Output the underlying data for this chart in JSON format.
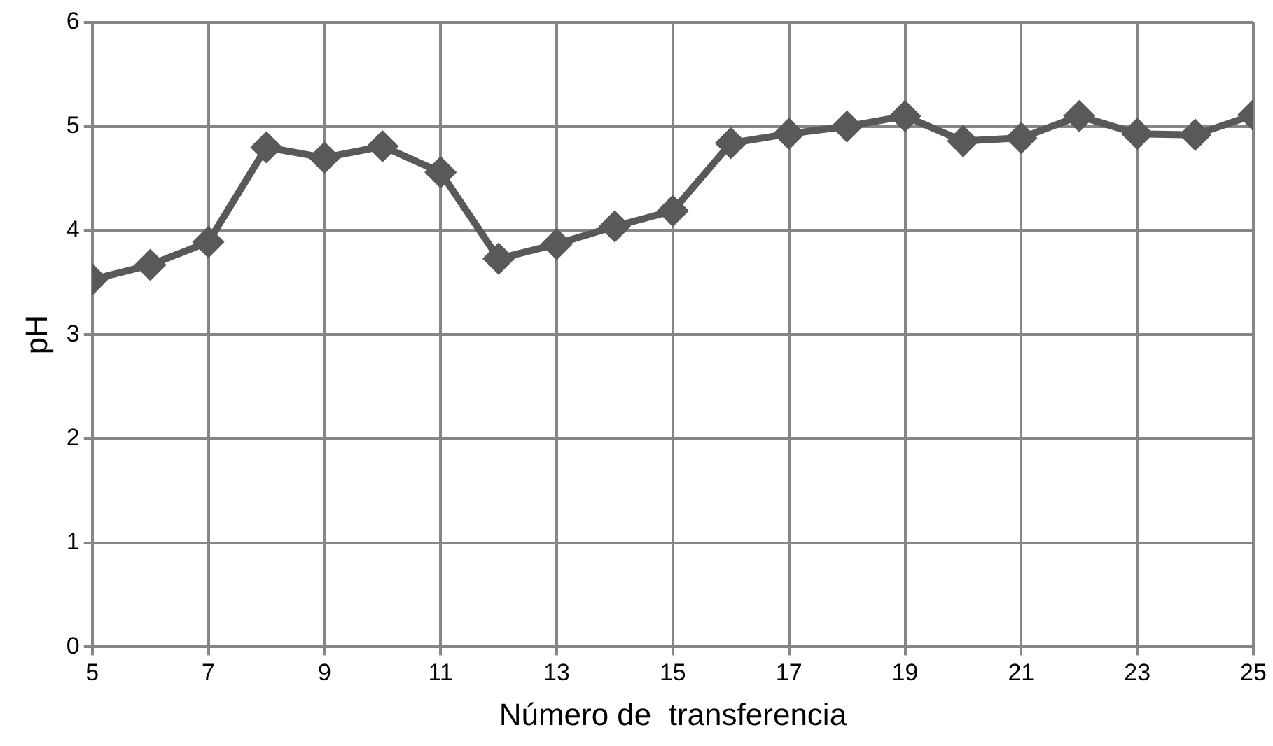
{
  "chart_data": {
    "type": "line",
    "xlabel": "Número de  transferencia",
    "ylabel": "pH",
    "x": [
      5,
      6,
      7,
      8,
      9,
      10,
      11,
      12,
      13,
      14,
      15,
      16,
      17,
      18,
      19,
      20,
      21,
      22,
      23,
      24,
      25
    ],
    "series": [
      {
        "color": "#595959",
        "values": [
          3.53,
          3.67,
          3.89,
          4.8,
          4.7,
          4.81,
          4.56,
          3.73,
          3.87,
          4.04,
          4.19,
          4.84,
          4.93,
          5.0,
          5.1,
          4.86,
          4.89,
          5.1,
          4.93,
          4.92,
          5.11
        ]
      }
    ],
    "xlim": [
      5,
      25
    ],
    "xticks": [
      5,
      7,
      9,
      11,
      13,
      15,
      17,
      19,
      21,
      23,
      25
    ],
    "ylim": [
      0,
      6
    ],
    "yticks": [
      0,
      1,
      2,
      3,
      4,
      5,
      6
    ],
    "grid": true,
    "legend": false,
    "marker": "diamond",
    "line_style": "solid"
  }
}
